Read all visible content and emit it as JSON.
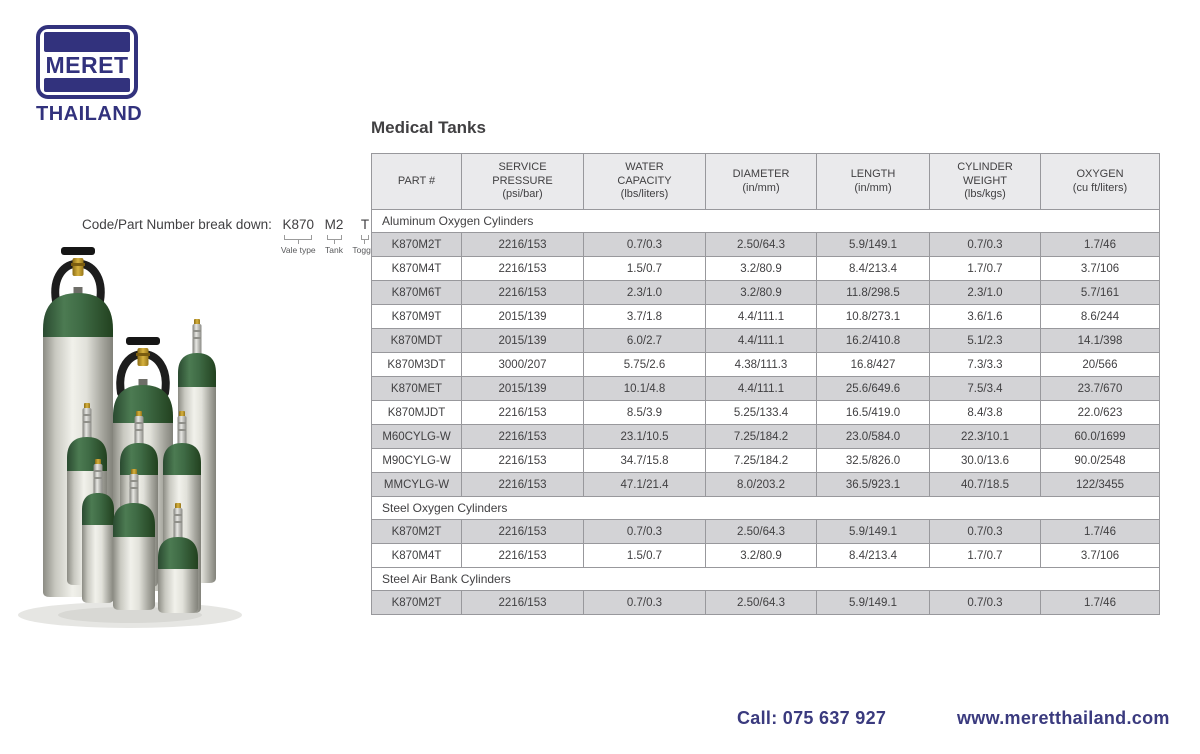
{
  "brand": {
    "logo_text": "MERET",
    "logo_subtext": "THAILAND"
  },
  "code_breakdown": {
    "label": "Code/Part Number break down:",
    "parts": [
      {
        "code": "K870",
        "meaning": "Vale type"
      },
      {
        "code": "M2",
        "meaning": "Tank"
      },
      {
        "code": "T",
        "meaning": "Toggle"
      }
    ]
  },
  "table": {
    "title": "Medical Tanks",
    "columns": [
      [
        "PART #"
      ],
      [
        "SERVICE",
        "PRESSURE",
        "(psi/bar)"
      ],
      [
        "WATER",
        "CAPACITY",
        "(lbs/liters)"
      ],
      [
        "DIAMETER",
        "(in/mm)"
      ],
      [
        "LENGTH",
        "(in/mm)"
      ],
      [
        "CYLINDER",
        "WEIGHT",
        "(lbs/kgs)"
      ],
      [
        "OXYGEN",
        "(cu ft/liters)"
      ]
    ],
    "sections": [
      {
        "name": "Aluminum Oxygen Cylinders",
        "rows": [
          [
            "K870M2T",
            "2216/153",
            "0.7/0.3",
            "2.50/64.3",
            "5.9/149.1",
            "0.7/0.3",
            "1.7/46"
          ],
          [
            "K870M4T",
            "2216/153",
            "1.5/0.7",
            "3.2/80.9",
            "8.4/213.4",
            "1.7/0.7",
            "3.7/106"
          ],
          [
            "K870M6T",
            "2216/153",
            "2.3/1.0",
            "3.2/80.9",
            "11.8/298.5",
            "2.3/1.0",
            "5.7/161"
          ],
          [
            "K870M9T",
            "2015/139",
            "3.7/1.8",
            "4.4/111.1",
            "10.8/273.1",
            "3.6/1.6",
            "8.6/244"
          ],
          [
            "K870MDT",
            "2015/139",
            "6.0/2.7",
            "4.4/111.1",
            "16.2/410.8",
            "5.1/2.3",
            "14.1/398"
          ],
          [
            "K870M3DT",
            "3000/207",
            "5.75/2.6",
            "4.38/111.3",
            "16.8/427",
            "7.3/3.3",
            "20/566"
          ],
          [
            "K870MET",
            "2015/139",
            "10.1/4.8",
            "4.4/111.1",
            "25.6/649.6",
            "7.5/3.4",
            "23.7/670"
          ],
          [
            "K870MJDT",
            "2216/153",
            "8.5/3.9",
            "5.25/133.4",
            "16.5/419.0",
            "8.4/3.8",
            "22.0/623"
          ],
          [
            "M60CYLG-W",
            "2216/153",
            "23.1/10.5",
            "7.25/184.2",
            "23.0/584.0",
            "22.3/10.1",
            "60.0/1699"
          ],
          [
            "M90CYLG-W",
            "2216/153",
            "34.7/15.8",
            "7.25/184.2",
            "32.5/826.0",
            "30.0/13.6",
            "90.0/2548"
          ],
          [
            "MMCYLG-W",
            "2216/153",
            "47.1/21.4",
            "8.0/203.2",
            "36.5/923.1",
            "40.7/18.5",
            "122/3455"
          ]
        ]
      },
      {
        "name": "Steel Oxygen Cylinders",
        "rows": [
          [
            "K870M2T",
            "2216/153",
            "0.7/0.3",
            "2.50/64.3",
            "5.9/149.1",
            "0.7/0.3",
            "1.7/46"
          ],
          [
            "K870M4T",
            "2216/153",
            "1.5/0.7",
            "3.2/80.9",
            "8.4/213.4",
            "1.7/0.7",
            "3.7/106"
          ]
        ]
      },
      {
        "name": "Steel Air Bank Cylinders",
        "rows": [
          [
            "K870M2T",
            "2216/153",
            "0.7/0.3",
            "2.50/64.3",
            "5.9/149.1",
            "0.7/0.3",
            "1.7/46"
          ]
        ]
      }
    ]
  },
  "footer": {
    "phone": "Call: 075 637 927",
    "website": "www.meretthailand.com"
  },
  "colors": {
    "navy": "#32327D",
    "table_row_gray": "#D3D3D6",
    "table_header_gray": "#EAEAEC",
    "table_border": "#98989C",
    "text": "#414042",
    "cylinder_green": "#46734C",
    "cylinder_silver": "#E9E9E3"
  },
  "image": {
    "description": "group of nine aluminum medical oxygen cylinders, silver bodies with green shoulders"
  }
}
